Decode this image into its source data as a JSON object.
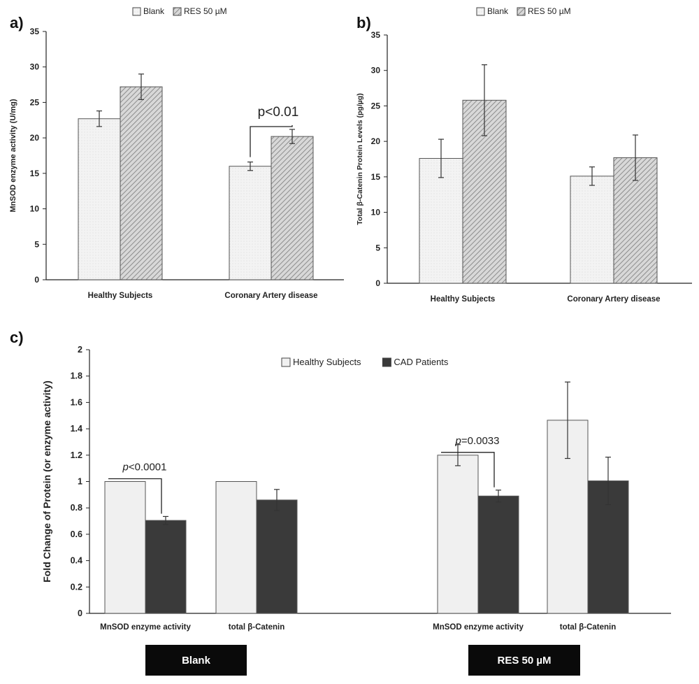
{
  "chart_data": [
    {
      "panel": "a)",
      "type": "bar",
      "ylabel": "MnSOD enzyme activity (U/mg)",
      "ylim": [
        0,
        35
      ],
      "yticks": [
        0,
        5,
        10,
        15,
        20,
        25,
        30,
        35
      ],
      "categories": [
        "Healthy Subjects",
        "Coronary Artery disease"
      ],
      "series": [
        {
          "name": "Blank",
          "values": [
            22.7,
            16.0
          ],
          "errors": [
            1.1,
            0.6
          ],
          "color": "#efefef",
          "pattern": "dots"
        },
        {
          "name": "RES 50 µM",
          "values": [
            27.2,
            20.2
          ],
          "errors": [
            1.8,
            1.0
          ],
          "color": "#bdbdbd",
          "pattern": "hatch"
        }
      ],
      "annotations": [
        {
          "text": "p<0.01",
          "category": 1
        }
      ],
      "legend": "top-center",
      "grid": false
    },
    {
      "panel": "b)",
      "type": "bar",
      "ylabel": "Total β-Catenin Protein Levels (pg/µg)",
      "ylim": [
        0,
        35
      ],
      "yticks": [
        0,
        5,
        10,
        15,
        20,
        25,
        30,
        35
      ],
      "categories": [
        "Healthy Subjects",
        "Coronary Artery disease"
      ],
      "series": [
        {
          "name": "Blank",
          "values": [
            17.6,
            15.1
          ],
          "errors": [
            2.7,
            1.3
          ],
          "color": "#efefef",
          "pattern": "dots"
        },
        {
          "name": "RES 50 µM",
          "values": [
            25.8,
            17.7
          ],
          "errors": [
            5.0,
            3.2
          ],
          "color": "#bdbdbd",
          "pattern": "hatch"
        }
      ],
      "legend": "top-center",
      "grid": false
    },
    {
      "panel": "c)",
      "type": "bar",
      "ylabel": "Fold Change of Protein (or enzyme activity)",
      "ylim": [
        0,
        2
      ],
      "yticks": [
        "0",
        "0.2",
        "0.4",
        "0.6",
        "0.8",
        "1",
        "1.2",
        "1.4",
        "1.6",
        "1.8",
        "2"
      ],
      "categories": [
        "MnSOD enzyme activity",
        "total β-Catenin",
        "MnSOD enzyme activity",
        "total β-Catenin"
      ],
      "groups": [
        "Blank",
        "RES 50 µM"
      ],
      "series": [
        {
          "name": "Healthy Subjects",
          "values": [
            1.0,
            1.0,
            1.2,
            1.465
          ],
          "errors": [
            0,
            0,
            0.08,
            0.29
          ],
          "color": "#f0f0f0"
        },
        {
          "name": "CAD Patients",
          "values": [
            0.705,
            0.86,
            0.89,
            1.005
          ],
          "errors": [
            0.03,
            0.08,
            0.045,
            0.18
          ],
          "color": "#3a3a3a"
        }
      ],
      "annotations": [
        {
          "prefix": "p",
          "text": "<0.0001",
          "category": 0
        },
        {
          "prefix": "p",
          "text": "=0.0033",
          "category": 2
        }
      ],
      "legend": "top-center",
      "grid": false
    }
  ]
}
